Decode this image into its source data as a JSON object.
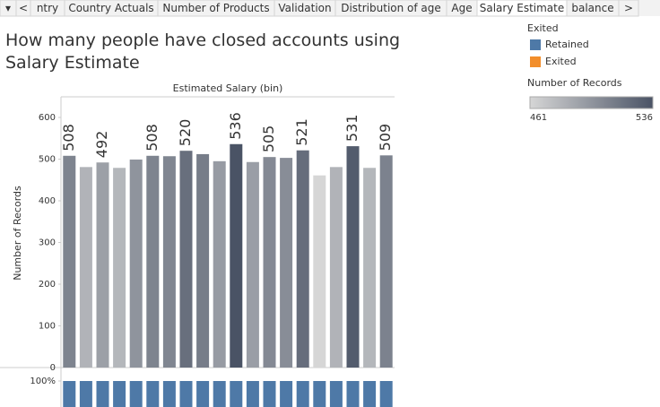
{
  "tabs": [
    "▾",
    "<",
    "ntry",
    "Country Actuals",
    "Number of Products",
    "Validation",
    "Distribution of age",
    "Age",
    "Salary Estimate",
    "balance",
    ">"
  ],
  "active_tab": 8,
  "chart_data": {
    "type": "bar",
    "title": "How many people have closed accounts using Salary Estimate",
    "x_header": "Estimated Salary (bin)",
    "y_label": "Number of Records",
    "categories": [
      null,
      null,
      null,
      null,
      null,
      null,
      null,
      null,
      null,
      null,
      null,
      null,
      null,
      null,
      null,
      null,
      null,
      null,
      null,
      null
    ],
    "values": [
      508,
      481,
      492,
      479,
      499,
      508,
      507,
      520,
      512,
      495,
      536,
      493,
      505,
      503,
      521,
      461,
      481,
      531,
      479,
      509
    ],
    "value_labels": [
      "508",
      null,
      "492",
      null,
      null,
      "508",
      null,
      "520",
      null,
      null,
      "536",
      null,
      "505",
      null,
      "521",
      null,
      null,
      "531",
      null,
      "509"
    ],
    "ylim": [
      0,
      600
    ],
    "yticks": [
      0,
      100,
      200,
      300,
      400,
      500,
      600
    ],
    "pct_ticks": [
      {
        "value": 100,
        "label": "100%"
      }
    ],
    "color_range": [
      "#d6d6d6",
      "#4a5365"
    ],
    "legend": {
      "title": "Exited",
      "items": [
        {
          "name": "Retained",
          "color": "#4e79a7"
        },
        {
          "name": "Exited",
          "color": "#f28e2b"
        }
      ]
    },
    "color_legend": {
      "title": "Number of Records",
      "min": 461,
      "max": 536
    }
  }
}
